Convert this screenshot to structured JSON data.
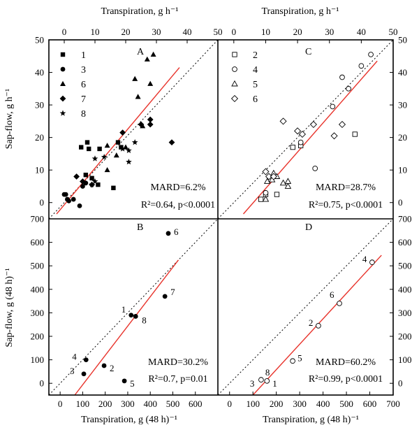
{
  "figure": {
    "top_xlabel": "Transpiration, g h⁻¹",
    "top_left_ylabel": "Sap-flow, g h⁻¹",
    "bottom_xlabel": "Transpiration, g (48 h)⁻¹",
    "bottom_left_ylabel": "Sap-flow, g (48 h)⁻¹",
    "colors": {
      "regression": "#e8332b",
      "ink": "#000000"
    }
  },
  "chart_data": [
    {
      "panel": "A",
      "type": "scatter",
      "xlim": [
        -5,
        50
      ],
      "ylim": [
        -5,
        50
      ],
      "xticks": [
        "0",
        "10",
        "20",
        "30",
        "40",
        "50"
      ],
      "yticks": [
        "0",
        "10",
        "20",
        "30",
        "40",
        "50"
      ],
      "x_axis_position": "top",
      "y_axis_position": "left",
      "stats": {
        "mard": "MARD=6.2%",
        "r2": "R²=0.64, p<0.0001"
      },
      "regression": {
        "x": [
          -2.5,
          37.5
        ],
        "y": [
          -3.5,
          41.5
        ]
      },
      "legend": [
        {
          "label": "1",
          "marker": "square"
        },
        {
          "label": "3",
          "marker": "circle"
        },
        {
          "label": "6",
          "marker": "triangle"
        },
        {
          "label": "7",
          "marker": "diamond"
        },
        {
          "label": "8",
          "marker": "star"
        }
      ],
      "series": [
        {
          "name": "1",
          "marker": "square",
          "points": [
            [
              5.5,
              17
            ],
            [
              7.5,
              18.5
            ],
            [
              8,
              16.5
            ],
            [
              11.5,
              16.5
            ],
            [
              17.5,
              18.5
            ],
            [
              18.5,
              17
            ],
            [
              7,
              8.5
            ],
            [
              9,
              7.5
            ],
            [
              11,
              5.5
            ],
            [
              16,
              4.5
            ]
          ]
        },
        {
          "name": "3",
          "marker": "circle",
          "points": [
            [
              0,
              2.5
            ],
            [
              0.5,
              2.5
            ],
            [
              1,
              1
            ],
            [
              1.5,
              0.5
            ],
            [
              3,
              1
            ],
            [
              5,
              -1
            ],
            [
              6,
              5
            ],
            [
              7,
              6
            ]
          ]
        },
        {
          "name": "6",
          "marker": "triangle",
          "points": [
            [
              14,
              17.5
            ],
            [
              17,
              14.5
            ],
            [
              20,
              17
            ],
            [
              23,
              38
            ],
            [
              24,
              32.5
            ],
            [
              25.5,
              23.5
            ],
            [
              27,
              44
            ],
            [
              28,
              36.5
            ],
            [
              29,
              45.5
            ],
            [
              14,
              10
            ]
          ]
        },
        {
          "name": "7",
          "marker": "diamond",
          "points": [
            [
              4,
              8
            ],
            [
              6,
              6.5
            ],
            [
              9,
              5.5
            ],
            [
              19,
              21.5
            ],
            [
              25,
              24
            ],
            [
              28,
              25.5
            ],
            [
              28,
              24
            ],
            [
              35,
              18.5
            ]
          ]
        },
        {
          "name": "8",
          "marker": "star",
          "points": [
            [
              10,
              13.5
            ],
            [
              13,
              14
            ],
            [
              19,
              16.5
            ],
            [
              21,
              16
            ],
            [
              23,
              18.5
            ],
            [
              21,
              12.5
            ],
            [
              9,
              5.5
            ],
            [
              10,
              6.5
            ]
          ]
        }
      ]
    },
    {
      "panel": "C",
      "type": "scatter",
      "xlim": [
        -5,
        50
      ],
      "ylim": [
        -5,
        50
      ],
      "xticks": [
        "0",
        "10",
        "20",
        "30",
        "40",
        "50"
      ],
      "yticks": [
        "0",
        "10",
        "20",
        "30",
        "40",
        "50"
      ],
      "x_axis_position": "top",
      "y_axis_position": "right",
      "stats": {
        "mard": "MARD=28.7%",
        "r2": "R²=0.75, p<0.0001"
      },
      "regression": {
        "x": [
          3,
          45
        ],
        "y": [
          -3.5,
          43.5
        ]
      },
      "legend": [
        {
          "label": "2",
          "marker": "open-square"
        },
        {
          "label": "4",
          "marker": "open-circle"
        },
        {
          "label": "5",
          "marker": "open-triangle"
        },
        {
          "label": "6",
          "marker": "open-diamond"
        }
      ],
      "series": [
        {
          "name": "2",
          "marker": "open-square",
          "points": [
            [
              8.5,
              1
            ],
            [
              10,
              2.5
            ],
            [
              13.5,
              2.5
            ],
            [
              18.5,
              17
            ],
            [
              21,
              17.5
            ],
            [
              38,
              21
            ]
          ]
        },
        {
          "name": "4",
          "marker": "open-circle",
          "points": [
            [
              10,
              3
            ],
            [
              21,
              18.5
            ],
            [
              25.5,
              10.5
            ],
            [
              31,
              29.5
            ],
            [
              34,
              38.5
            ],
            [
              36,
              35
            ],
            [
              40,
              42
            ],
            [
              43,
              45.5
            ]
          ]
        },
        {
          "name": "5",
          "marker": "open-triangle",
          "points": [
            [
              10,
              1
            ],
            [
              10.5,
              6.5
            ],
            [
              12,
              7
            ],
            [
              12.5,
              9
            ],
            [
              13.5,
              8
            ],
            [
              15.5,
              6
            ],
            [
              17,
              5
            ],
            [
              17,
              6.5
            ]
          ]
        },
        {
          "name": "6",
          "marker": "open-diamond",
          "points": [
            [
              10,
              9.5
            ],
            [
              11,
              8
            ],
            [
              12.5,
              8
            ],
            [
              15.5,
              25
            ],
            [
              20,
              22
            ],
            [
              21.5,
              21
            ],
            [
              25,
              24
            ],
            [
              31.5,
              20.5
            ],
            [
              34,
              24
            ]
          ]
        }
      ]
    },
    {
      "panel": "B",
      "type": "scatter",
      "xlim": [
        -50,
        700
      ],
      "ylim": [
        -50,
        700
      ],
      "xticks": [
        "0",
        "100",
        "200",
        "300",
        "400",
        "500",
        "600"
      ],
      "yticks": [
        "0",
        "100",
        "200",
        "300",
        "400",
        "500",
        "600",
        "700"
      ],
      "x_axis_position": "bottom",
      "y_axis_position": "left",
      "stats": {
        "mard": "MARD=30.2%",
        "r2": "R²=0.7, p=0.01"
      },
      "regression": {
        "x": [
          65,
          525
        ],
        "y": [
          -50,
          525
        ]
      },
      "series": [
        {
          "name": "samples",
          "marker": "circle",
          "points": [
            [
              105,
              40
            ],
            [
              115,
              100
            ],
            [
              195,
              75
            ],
            [
              285,
              10
            ],
            [
              315,
              290
            ],
            [
              335,
              285
            ],
            [
              465,
              370
            ],
            [
              480,
              638
            ]
          ]
        }
      ],
      "point_labels": [
        "3",
        "4",
        "2",
        "5",
        "1",
        "8",
        "7",
        "6"
      ]
    },
    {
      "panel": "D",
      "type": "scatter",
      "xlim": [
        -50,
        700
      ],
      "ylim": [
        -50,
        700
      ],
      "xticks": [
        "0",
        "100",
        "200",
        "300",
        "400",
        "500",
        "600",
        "700"
      ],
      "yticks": [
        "0",
        "100",
        "200",
        "300",
        "400",
        "500",
        "600",
        "700"
      ],
      "x_axis_position": "bottom",
      "y_axis_position": "right",
      "stats": {
        "mard": "MARD=60.2%",
        "r2": "R²=0.99, p<0.0001"
      },
      "regression": {
        "x": [
          100,
          650
        ],
        "y": [
          -50,
          545
        ]
      },
      "series": [
        {
          "name": "samples",
          "marker": "open-circle",
          "points": [
            [
              135,
              15
            ],
            [
              160,
              10
            ],
            [
              270,
              95
            ],
            [
              380,
              245
            ],
            [
              470,
              340
            ],
            [
              610,
              515
            ]
          ]
        }
      ],
      "point_labels": [
        "3",
        "1",
        "5",
        "2",
        "6",
        "4"
      ],
      "extra_labels": [
        "8"
      ]
    }
  ]
}
